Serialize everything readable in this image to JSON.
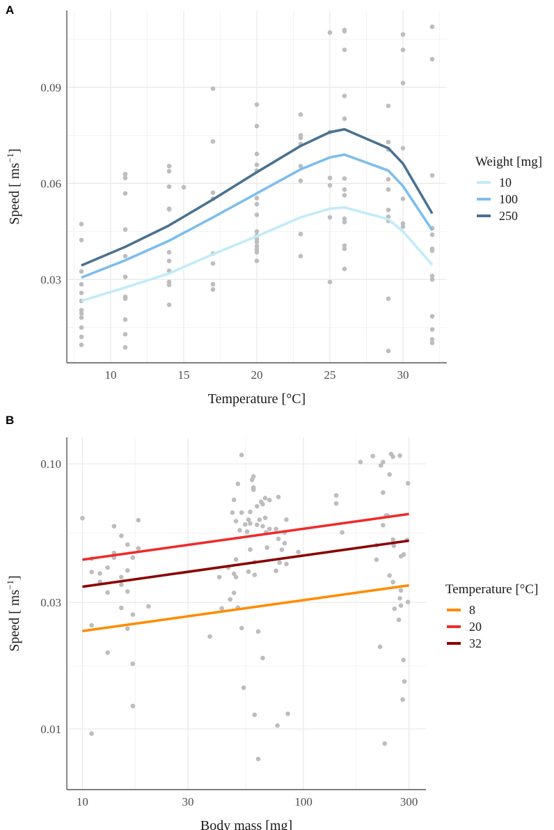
{
  "chart_data": [
    {
      "panel": "A",
      "type": "line",
      "xlabel": "Temperature [°C]",
      "ylabel_main": "Speed [ ms",
      "ylabel_sup": "−1",
      "ylabel_end": "]",
      "xlim": [
        7,
        33
      ],
      "ylim": [
        0.004,
        0.114
      ],
      "x_ticks": [
        10,
        15,
        20,
        25,
        30
      ],
      "x_tick_labels": [
        "10",
        "15",
        "20",
        "25",
        "30"
      ],
      "y_ticks": [
        0.03,
        0.06,
        0.09
      ],
      "y_tick_labels": [
        "0.03",
        "0.06",
        "0.09"
      ],
      "grid": true,
      "legend": {
        "title": "Weight [mg]",
        "position": "right"
      },
      "x": [
        8,
        11,
        14,
        17,
        20,
        23,
        25,
        26,
        29,
        30,
        32
      ],
      "series": [
        {
          "name": "10",
          "color": "#c2ebfa",
          "values": [
            0.0233,
            0.0275,
            0.0319,
            0.0379,
            0.0435,
            0.0494,
            0.0521,
            0.0525,
            0.0488,
            0.045,
            0.0346
          ]
        },
        {
          "name": "100",
          "color": "#7dbdec",
          "values": [
            0.0306,
            0.036,
            0.0421,
            0.0494,
            0.0569,
            0.0644,
            0.0681,
            0.069,
            0.064,
            0.0592,
            0.0454
          ]
        },
        {
          "name": "250",
          "color": "#4b7190",
          "values": [
            0.0344,
            0.0402,
            0.0469,
            0.055,
            0.0635,
            0.0717,
            0.076,
            0.0769,
            0.071,
            0.0662,
            0.0506
          ]
        }
      ],
      "points": [
        [
          8,
          0.0473
        ],
        [
          8,
          0.0423
        ],
        [
          8,
          0.0325
        ],
        [
          8,
          0.0285
        ],
        [
          8,
          0.0258
        ],
        [
          8,
          0.0233
        ],
        [
          8,
          0.0204
        ],
        [
          8,
          0.0194
        ],
        [
          8,
          0.0181
        ],
        [
          8,
          0.015
        ],
        [
          8,
          0.0121
        ],
        [
          8,
          0.0096
        ],
        [
          11,
          0.0629
        ],
        [
          11,
          0.0617
        ],
        [
          11,
          0.0569
        ],
        [
          11,
          0.0456
        ],
        [
          11,
          0.0373
        ],
        [
          11,
          0.0308
        ],
        [
          11,
          0.0246
        ],
        [
          11,
          0.024
        ],
        [
          11,
          0.0175
        ],
        [
          11,
          0.0129
        ],
        [
          11,
          0.0088
        ],
        [
          14,
          0.0654
        ],
        [
          14,
          0.0638
        ],
        [
          14,
          0.059
        ],
        [
          14,
          0.0521
        ],
        [
          14,
          0.0519
        ],
        [
          14,
          0.0385
        ],
        [
          14,
          0.0358
        ],
        [
          14,
          0.0327
        ],
        [
          14,
          0.0292
        ],
        [
          14,
          0.0283
        ],
        [
          14,
          0.0221
        ],
        [
          15,
          0.0588
        ],
        [
          17,
          0.0896
        ],
        [
          17,
          0.0731
        ],
        [
          17,
          0.0571
        ],
        [
          17,
          0.0552
        ],
        [
          17,
          0.0381
        ],
        [
          17,
          0.035
        ],
        [
          17,
          0.0285
        ],
        [
          17,
          0.0269
        ],
        [
          20,
          0.0846
        ],
        [
          20,
          0.0779
        ],
        [
          20,
          0.0692
        ],
        [
          20,
          0.0658
        ],
        [
          20,
          0.064
        ],
        [
          20,
          0.0554
        ],
        [
          20,
          0.0535
        ],
        [
          20,
          0.0502
        ],
        [
          20,
          0.045
        ],
        [
          20,
          0.0437
        ],
        [
          20,
          0.0427
        ],
        [
          20,
          0.0417
        ],
        [
          20,
          0.0404
        ],
        [
          20,
          0.0394
        ],
        [
          20,
          0.0385
        ],
        [
          20,
          0.0358
        ],
        [
          23,
          0.0815
        ],
        [
          23,
          0.075
        ],
        [
          23,
          0.0742
        ],
        [
          23,
          0.0723
        ],
        [
          23,
          0.0654
        ],
        [
          23,
          0.0608
        ],
        [
          23,
          0.0442
        ],
        [
          23,
          0.0373
        ],
        [
          25,
          0.1071
        ],
        [
          25,
          0.076
        ],
        [
          25,
          0.0617
        ],
        [
          25,
          0.0594
        ],
        [
          25,
          0.0494
        ],
        [
          25,
          0.0292
        ],
        [
          26,
          0.1079
        ],
        [
          26,
          0.1075
        ],
        [
          26,
          0.1017
        ],
        [
          26,
          0.0873
        ],
        [
          26,
          0.0802
        ],
        [
          26,
          0.0615
        ],
        [
          26,
          0.0581
        ],
        [
          26,
          0.0563
        ],
        [
          26,
          0.049
        ],
        [
          26,
          0.0479
        ],
        [
          26,
          0.0406
        ],
        [
          26,
          0.0396
        ],
        [
          26,
          0.0333
        ],
        [
          29,
          0.0842
        ],
        [
          29,
          0.0729
        ],
        [
          29,
          0.0706
        ],
        [
          29,
          0.0613
        ],
        [
          29,
          0.0581
        ],
        [
          29,
          0.0517
        ],
        [
          29,
          0.0496
        ],
        [
          29,
          0.0483
        ],
        [
          29,
          0.024
        ],
        [
          29,
          0.0077
        ],
        [
          30,
          0.1065
        ],
        [
          30,
          0.1017
        ],
        [
          30,
          0.0913
        ],
        [
          30,
          0.071
        ],
        [
          30,
          0.0552
        ],
        [
          30,
          0.0475
        ],
        [
          30,
          0.0465
        ],
        [
          32,
          0.1089
        ],
        [
          32,
          0.0988
        ],
        [
          32,
          0.0625
        ],
        [
          32,
          0.046
        ],
        [
          32,
          0.044
        ],
        [
          32,
          0.0396
        ],
        [
          32,
          0.039
        ],
        [
          32,
          0.0311
        ],
        [
          32,
          0.03
        ],
        [
          32,
          0.0185
        ],
        [
          32,
          0.0144
        ],
        [
          32,
          0.0113
        ],
        [
          32,
          0.0102
        ]
      ]
    },
    {
      "panel": "B",
      "type": "scatter",
      "xlabel": "Body mass [mg]",
      "ylabel_main": "Speed [ ms",
      "ylabel_sup": "−1",
      "ylabel_end": "]",
      "x_scale": "log10",
      "y_scale": "log10",
      "xlim": [
        8.5,
        358
      ],
      "ylim": [
        0.0059,
        0.126
      ],
      "x_ticks": [
        10,
        30,
        100,
        300
      ],
      "x_tick_labels": [
        "10",
        "30",
        "100",
        "300"
      ],
      "y_ticks": [
        0.01,
        0.03,
        0.1
      ],
      "y_tick_labels": [
        "0.01",
        "0.03",
        "0.10"
      ],
      "grid": true,
      "legend": {
        "title": "Temperature [°C]",
        "position": "right"
      },
      "x": [
        10,
        300
      ],
      "series": [
        {
          "name": "8",
          "color": "#ff8c00",
          "values": [
            0.0234,
            0.0348
          ]
        },
        {
          "name": "20",
          "color": "#ee2c2c",
          "values": [
            0.0435,
            0.0647
          ]
        },
        {
          "name": "32",
          "color": "#8b0000",
          "values": [
            0.0344,
            0.0513
          ]
        }
      ],
      "points": [
        [
          10,
          0.0624
        ],
        [
          11,
          0.0439
        ],
        [
          11,
          0.0391
        ],
        [
          12,
          0.0386
        ],
        [
          12,
          0.0359
        ],
        [
          13,
          0.0406
        ],
        [
          13,
          0.0327
        ],
        [
          13.9,
          0.0582
        ],
        [
          13.9,
          0.0461
        ],
        [
          13.9,
          0.0443
        ],
        [
          15,
          0.0535
        ],
        [
          15,
          0.0374
        ],
        [
          15,
          0.035
        ],
        [
          15,
          0.0286
        ],
        [
          16,
          0.0496
        ],
        [
          16,
          0.0396
        ],
        [
          16,
          0.033
        ],
        [
          16,
          0.0239
        ],
        [
          16.9,
          0.0443
        ],
        [
          16.9,
          0.027
        ],
        [
          17.9,
          0.0613
        ],
        [
          17.9,
          0.048
        ],
        [
          19.9,
          0.029
        ],
        [
          11,
          0.0246
        ],
        [
          13,
          0.0194
        ],
        [
          16.9,
          0.0176
        ],
        [
          16.9,
          0.0122
        ],
        [
          11,
          0.0096
        ],
        [
          52.5,
          0.108
        ],
        [
          50.5,
          0.0841
        ],
        [
          59.4,
          0.0896
        ],
        [
          58.5,
          0.0871
        ],
        [
          59.4,
          0.0814
        ],
        [
          59.4,
          0.0799
        ],
        [
          48.5,
          0.0732
        ],
        [
          47.7,
          0.0655
        ],
        [
          52.5,
          0.0655
        ],
        [
          57.4,
          0.0659
        ],
        [
          61.6,
          0.0692
        ],
        [
          64.3,
          0.0719
        ],
        [
          65.4,
          0.0705
        ],
        [
          67.1,
          0.0743
        ],
        [
          70.2,
          0.073
        ],
        [
          77,
          0.075
        ],
        [
          49.5,
          0.0608
        ],
        [
          56.4,
          0.0616
        ],
        [
          54.5,
          0.0591
        ],
        [
          57.4,
          0.0596
        ],
        [
          61.6,
          0.0589
        ],
        [
          63.2,
          0.0616
        ],
        [
          67.1,
          0.0626
        ],
        [
          65.4,
          0.0582
        ],
        [
          51.5,
          0.0562
        ],
        [
          55.6,
          0.0555
        ],
        [
          70.2,
          0.0568
        ],
        [
          75.1,
          0.0568
        ],
        [
          67.7,
          0.0552
        ],
        [
          82.2,
          0.0551
        ],
        [
          83.7,
          0.0616
        ],
        [
          77,
          0.0521
        ],
        [
          82.2,
          0.0502
        ],
        [
          57.4,
          0.0475
        ],
        [
          68.4,
          0.0483
        ],
        [
          79.8,
          0.0474
        ],
        [
          94.8,
          0.0465
        ],
        [
          49.5,
          0.0436
        ],
        [
          60.1,
          0.0426
        ],
        [
          45.7,
          0.0406
        ],
        [
          41.6,
          0.0374
        ],
        [
          48.5,
          0.0385
        ],
        [
          49.5,
          0.0374
        ],
        [
          56.4,
          0.0392
        ],
        [
          60.1,
          0.0381
        ],
        [
          75.1,
          0.0395
        ],
        [
          78,
          0.0424
        ],
        [
          83.7,
          0.0419
        ],
        [
          48.5,
          0.0326
        ],
        [
          46.6,
          0.0308
        ],
        [
          42.7,
          0.0285
        ],
        [
          50.5,
          0.0287
        ],
        [
          52.5,
          0.024
        ],
        [
          62.4,
          0.0233
        ],
        [
          37.7,
          0.0223
        ],
        [
          65.4,
          0.0185
        ],
        [
          53.6,
          0.0143
        ],
        [
          60.1,
          0.0113
        ],
        [
          85,
          0.0114
        ],
        [
          76.2,
          0.0103
        ],
        [
          62.4,
          0.0077
        ],
        [
          140.6,
          0.076
        ],
        [
          140.6,
          0.0709
        ],
        [
          149.6,
          0.0551
        ],
        [
          181,
          0.1016
        ],
        [
          206,
          0.107
        ],
        [
          224,
          0.0987
        ],
        [
          229,
          0.1016
        ],
        [
          249,
          0.109
        ],
        [
          254,
          0.1065
        ],
        [
          273,
          0.1074
        ],
        [
          245,
          0.0912
        ],
        [
          297,
          0.0845
        ],
        [
          229,
          0.0779
        ],
        [
          240,
          0.0638
        ],
        [
          236,
          0.0638
        ],
        [
          229,
          0.0587
        ],
        [
          214,
          0.0493
        ],
        [
          254,
          0.0518
        ],
        [
          256,
          0.0491
        ],
        [
          294,
          0.0516
        ],
        [
          214,
          0.0435
        ],
        [
          276,
          0.0448
        ],
        [
          284,
          0.0455
        ],
        [
          245,
          0.0379
        ],
        [
          254,
          0.0358
        ],
        [
          276,
          0.0333
        ],
        [
          273,
          0.0311
        ],
        [
          276,
          0.0292
        ],
        [
          297,
          0.0301
        ],
        [
          258,
          0.0284
        ],
        [
          270,
          0.0258
        ],
        [
          222,
          0.0204
        ],
        [
          283,
          0.0182
        ],
        [
          286,
          0.0151
        ],
        [
          281,
          0.0129
        ],
        [
          233,
          0.0088
        ]
      ]
    }
  ]
}
